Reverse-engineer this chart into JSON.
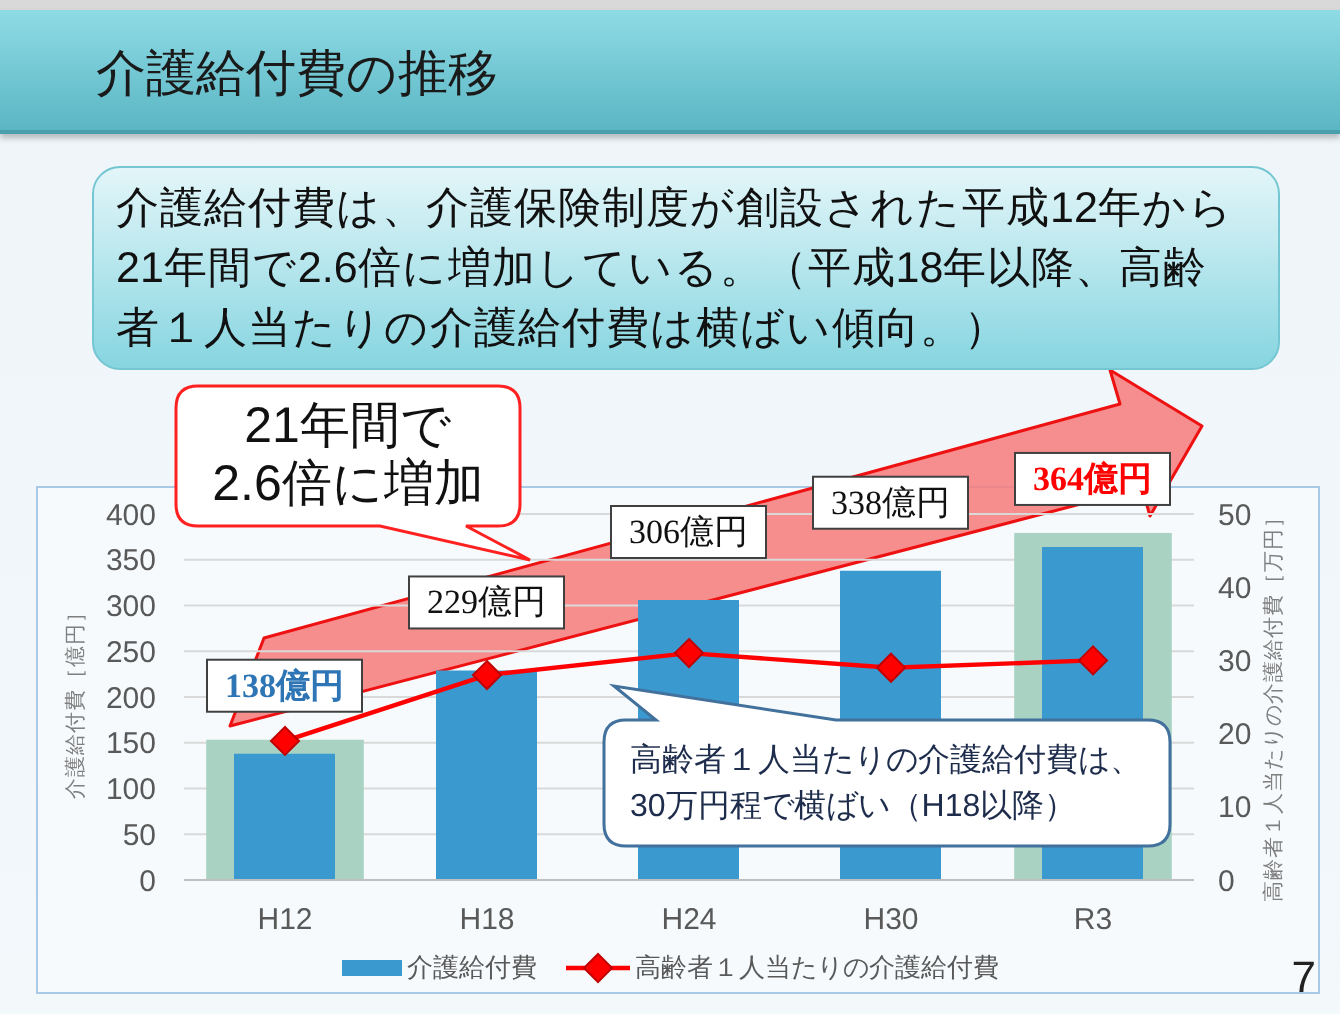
{
  "chart_data": {
    "type": "bar",
    "title": "介護給付費の推移",
    "subtitle": "介護給付費は、介護保険制度が創設された平成12年から21年間で2.6倍に増加している。（平成18年以降、高齢者１人当たりの介護給付費は横ばい傾向。）",
    "categories": [
      "H12",
      "H18",
      "H24",
      "H30",
      "R3"
    ],
    "series": [
      {
        "name": "介護給付費",
        "color": "#3a9ad0",
        "values": [
          138,
          229,
          306,
          338,
          364
        ],
        "value_labels": [
          "138億円",
          "229億円",
          "306億円",
          "338億円",
          "364億円"
        ]
      },
      {
        "name": "高齢者１人当たりの介護給付費",
        "type": "line",
        "color": "#ff0000",
        "axis": "y2",
        "values": [
          19,
          28,
          31,
          29,
          30
        ]
      }
    ],
    "ylabel": "介護給付費［億円］",
    "y2label": "高齢者１人当たりの介護給付費［万円］",
    "ylim": [
      0,
      400
    ],
    "yticks": [
      0,
      50,
      100,
      150,
      200,
      250,
      300,
      350,
      400
    ],
    "y2lim": [
      0,
      50
    ],
    "y2ticks": [
      0,
      10,
      20,
      30,
      40,
      50
    ],
    "grid": "y",
    "legend": "bottom",
    "marker": "diamond",
    "line_style": "solid",
    "bands": [
      {
        "axis": "x",
        "from": "H12",
        "to": "H12",
        "color": "#a9d2c2"
      },
      {
        "axis": "x",
        "from": "R3",
        "to": "R3",
        "color": "#a9d2c2"
      }
    ],
    "annotations": [
      "21年間で\n2.6倍に増加",
      "高齢者１人当たりの介護給付費は、\n30万円程で横ばい（H18以降）",
      "7"
    ]
  }
}
